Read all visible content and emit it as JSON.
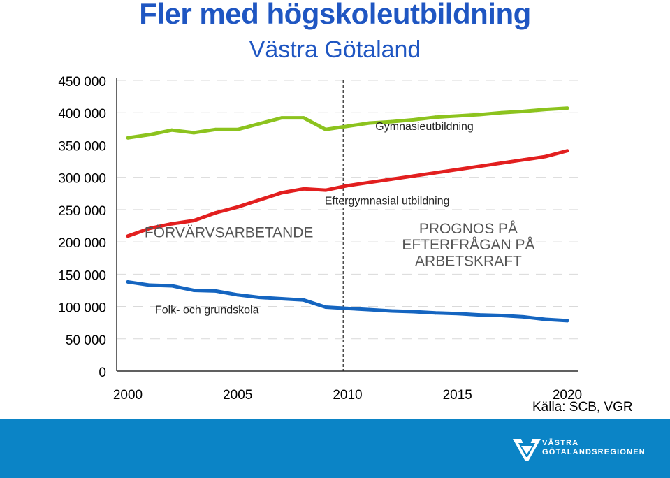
{
  "title": "Fler med högskoleutbildning",
  "subtitle": "Västra Götaland",
  "source": "Källa: SCB, VGR",
  "logo": {
    "line1": "VÄSTRA",
    "line2": "GÖTALANDSREGIONEN"
  },
  "colors": {
    "title": "#1f56c2",
    "green": "#8cc31e",
    "red": "#e21f1f",
    "blue": "#1565c0",
    "footer": "#0b84c6"
  },
  "chart_data": {
    "type": "line",
    "title": "",
    "xlabel": "",
    "ylabel": "",
    "xlim": [
      2000,
      2020
    ],
    "ylim": [
      0,
      450000
    ],
    "yticks": [
      0,
      50000,
      100000,
      150000,
      200000,
      250000,
      300000,
      350000,
      400000,
      450000
    ],
    "ytick_labels": [
      "0",
      "50 000",
      "100 000",
      "150 000",
      "200 000",
      "250 000",
      "300 000",
      "350 000",
      "400 000",
      "450 000"
    ],
    "xticks": [
      2000,
      2005,
      2010,
      2015,
      2020
    ],
    "xtick_labels": [
      "2000",
      "2005",
      "2010",
      "2015",
      "2020"
    ],
    "grid": true,
    "forecast_divider_x": 2009.8,
    "x": [
      2000,
      2001,
      2002,
      2003,
      2004,
      2005,
      2006,
      2007,
      2008,
      2009,
      2010,
      2011,
      2012,
      2013,
      2014,
      2015,
      2016,
      2017,
      2018,
      2019,
      2020
    ],
    "series": [
      {
        "name": "Gymnasieutbildning",
        "color": "#8cc31e",
        "values": [
          361000,
          366000,
          373000,
          369000,
          374000,
          374000,
          383000,
          392000,
          392000,
          374000,
          379000,
          384000,
          386000,
          389000,
          393000,
          395000,
          397000,
          400000,
          402000,
          405000,
          407000
        ]
      },
      {
        "name": "Eftergymnasial utbildning",
        "color": "#e21f1f",
        "values": [
          209000,
          221000,
          228000,
          233000,
          245000,
          254000,
          265000,
          276000,
          282000,
          280000,
          287000,
          292000,
          297000,
          302000,
          307000,
          312000,
          317000,
          322000,
          327000,
          332000,
          341000
        ]
      },
      {
        "name": "Folk- och grundskola",
        "color": "#1565c0",
        "values": [
          138000,
          133000,
          132000,
          125000,
          124000,
          118000,
          114000,
          112000,
          110000,
          99000,
          97000,
          95000,
          93000,
          92000,
          90000,
          89000,
          87000,
          86000,
          84000,
          80000,
          78000
        ]
      }
    ],
    "annotations": [
      {
        "text": "Gymnasieutbildning",
        "x": 2013.5,
        "y": 373000
      },
      {
        "text": "Eftergymnasial utbildning",
        "x": 2011.8,
        "y": 258000
      },
      {
        "text": "FÖRVÄRVSARBETANDE",
        "x": 2004.6,
        "y": 207000
      },
      {
        "text": "PROGNOS PÅ",
        "x": 2015.5,
        "y": 213000
      },
      {
        "text": "EFTERFRÅGAN PÅ",
        "x": 2015.5,
        "y": 188000
      },
      {
        "text": "ARBETSKRAFT",
        "x": 2015.5,
        "y": 163000
      },
      {
        "text": "Folk- och grundskola",
        "x": 2003.6,
        "y": 89000
      }
    ]
  }
}
